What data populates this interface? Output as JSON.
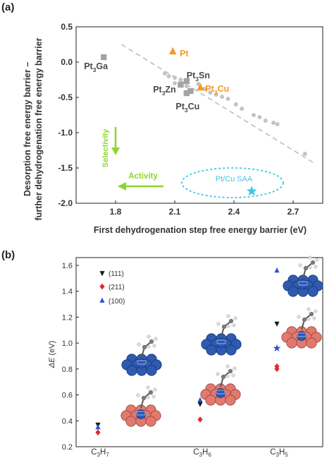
{
  "chart_data": [
    {
      "type": "scatter",
      "panel_label": "(a)",
      "xlabel": "First dehydrogenation step free energy barrier (eV)",
      "ylabel_line1": "Desorption free energy barrier –",
      "ylabel_line2": "further dehydrogenation free energy barrier",
      "xlim": [
        1.6,
        2.85
      ],
      "ylim": [
        -2.0,
        0.5
      ],
      "x_ticks": [
        "1.8",
        "2.1",
        "2.4",
        "2.7"
      ],
      "x_tick_values": [
        1.8,
        2.1,
        2.4,
        2.7
      ],
      "y_ticks": [
        "0.5",
        "0.0",
        "-0.5",
        "-1.0",
        "-1.5",
        "-2.0"
      ],
      "y_tick_values": [
        0.5,
        0.0,
        -0.5,
        -1.0,
        -1.5,
        -2.0
      ],
      "trend_line": [
        [
          1.83,
          0.25
        ],
        [
          2.8,
          -1.42
        ]
      ],
      "colors": {
        "orange": "#f39a2b",
        "gray": "#a3a3a3",
        "cyan": "#3fc7e8",
        "green": "#8dd62d",
        "label": "#4a4a4a"
      },
      "series": [
        {
          "marker": "circle",
          "color": "#c4c4c4",
          "points": [
            [
              2.05,
              -0.16
            ],
            [
              2.07,
              -0.2
            ],
            [
              2.1,
              -0.22
            ],
            [
              2.13,
              -0.25
            ],
            [
              2.1,
              -0.3
            ],
            [
              2.16,
              -0.34
            ],
            [
              2.22,
              -0.31
            ],
            [
              2.25,
              -0.38
            ],
            [
              2.28,
              -0.43
            ],
            [
              2.31,
              -0.46
            ],
            [
              2.34,
              -0.49
            ],
            [
              2.37,
              -0.52
            ],
            [
              2.41,
              -0.6
            ],
            [
              2.44,
              -0.66
            ],
            [
              2.5,
              -0.75
            ],
            [
              2.53,
              -0.78
            ],
            [
              2.56,
              -0.83
            ],
            [
              2.6,
              -0.86
            ],
            [
              2.62,
              -0.88
            ],
            [
              2.76,
              -1.3
            ]
          ]
        },
        {
          "marker": "square",
          "color": "#a3a3a3",
          "points": [
            [
              1.74,
              0.07
            ],
            [
              2.16,
              -0.27
            ],
            [
              2.13,
              -0.32
            ],
            [
              2.18,
              -0.41
            ],
            [
              2.16,
              -0.44
            ]
          ]
        },
        {
          "marker": "triangle",
          "color": "#f39a2b",
          "points": [
            [
              2.09,
              0.15
            ],
            [
              2.23,
              -0.36
            ]
          ]
        },
        {
          "marker": "star",
          "color": "#3fc7e8",
          "points": [
            [
              2.49,
              -1.83
            ]
          ]
        }
      ],
      "point_labels": [
        {
          "base": "Pt",
          "sub": "3",
          "rest": "Ga",
          "x": 1.64,
          "y": -0.06,
          "color": "#4a4a4a"
        },
        {
          "base": "Pt",
          "sub": "",
          "rest": "",
          "x": 2.125,
          "y": 0.12,
          "color": "#f39a2b"
        },
        {
          "base": "Pt",
          "sub": "3",
          "rest": "Sn",
          "x": 2.16,
          "y": -0.19,
          "color": "#4a4a4a"
        },
        {
          "base": "Pt",
          "sub": "3",
          "rest": "Zn",
          "x": 1.99,
          "y": -0.39,
          "color": "#4a4a4a"
        },
        {
          "base": "Pt",
          "sub": "3",
          "rest": "Cu",
          "x": 2.255,
          "y": -0.38,
          "color": "#f39a2b"
        },
        {
          "base": "Pt",
          "sub": "3",
          "rest": "Cu",
          "x": 2.105,
          "y": -0.63,
          "color": "#4a4a4a"
        }
      ],
      "saa_label": "Pt/Cu SAA",
      "selectivity_label": "Selectivity",
      "activity_label": "Activity"
    },
    {
      "type": "scatter",
      "panel_label": "(b)",
      "ylabel": "ΔE (eV)",
      "ylim": [
        0.2,
        1.66
      ],
      "y_ticks": [
        "0.2",
        "0.4",
        "0.6",
        "0.8",
        "1.0",
        "1.2",
        "1.4",
        "1.6"
      ],
      "y_tick_values": [
        0.2,
        0.4,
        0.6,
        0.8,
        1.0,
        1.2,
        1.4,
        1.6
      ],
      "categories": [
        {
          "base": "C",
          "sub1": "3",
          "mid": "H",
          "sub2": "7"
        },
        {
          "base": "C",
          "sub1": "3",
          "mid": "H",
          "sub2": "6"
        },
        {
          "base": "C",
          "sub1": "3",
          "mid": "H",
          "sub2": "5"
        }
      ],
      "series": [
        {
          "name": "(111)",
          "marker": "triangle-down",
          "color": "#1a1a1a",
          "values": [
            [
              0.37
            ],
            [
              0.53
            ],
            [
              1.15
            ]
          ]
        },
        {
          "name": "(211)",
          "marker": "diamond",
          "color": "#e02a2a",
          "values": [
            [
              0.31
            ],
            [
              0.41
            ],
            [
              0.8,
              0.82
            ]
          ]
        },
        {
          "name": "(100)",
          "marker": "triangle",
          "color": "#2f52d6",
          "values": [
            [
              0.35
            ],
            [
              0.56
            ],
            [
              1.56
            ]
          ]
        },
        {
          "name": "",
          "marker": "star",
          "color": "#2f52d6",
          "values": [
            [],
            [],
            [
              0.96
            ]
          ]
        }
      ]
    }
  ]
}
